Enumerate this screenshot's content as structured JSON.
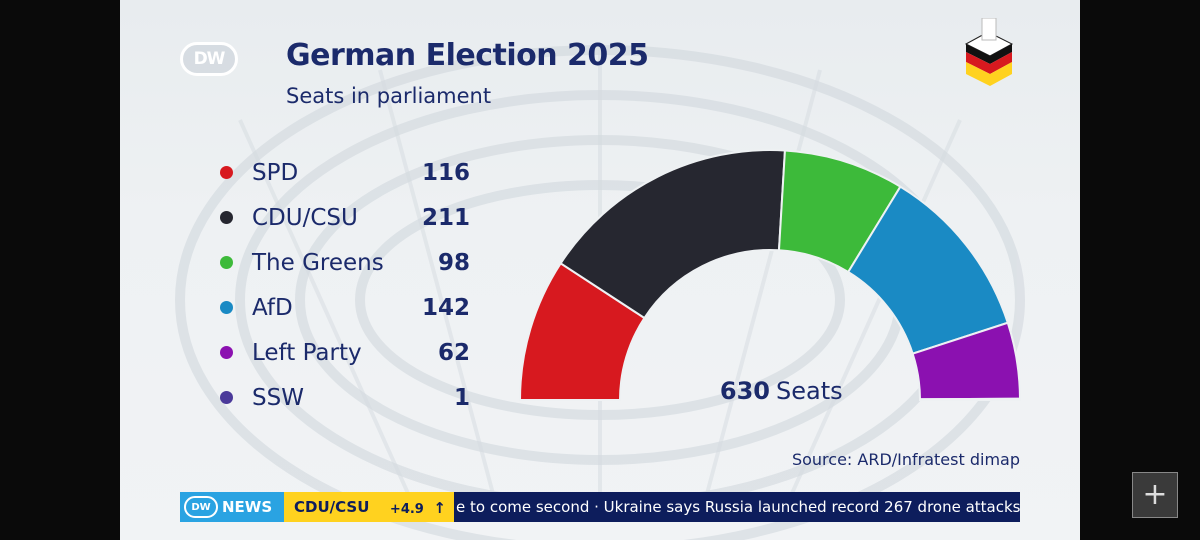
{
  "graphic": {
    "logo": "DW",
    "title": "German Election 2025",
    "subtitle": "Seats in parliament",
    "source": "Source: ARD/Infratest dimap",
    "total_value": "630",
    "total_label": "Seats"
  },
  "legend": [
    {
      "name": "SPD",
      "value": "116",
      "color": "#d7191f"
    },
    {
      "name": "CDU/CSU",
      "value": "211",
      "color": "#262730"
    },
    {
      "name": "The Greens",
      "value": "98",
      "color": "#3dba3a"
    },
    {
      "name": "AfD",
      "value": "142",
      "color": "#1a8ac4"
    },
    {
      "name": "Left Party",
      "value": "62",
      "color": "#8b11b0"
    },
    {
      "name": "SSW",
      "value": "1",
      "color": "#4b3a9a"
    }
  ],
  "chart_data": {
    "type": "pie",
    "title": "German Election 2025",
    "subtitle": "Seats in parliament",
    "categories": [
      "SPD",
      "CDU/CSU",
      "The Greens",
      "AfD",
      "Left Party",
      "SSW"
    ],
    "values": [
      116,
      211,
      98,
      142,
      62,
      1
    ],
    "colors": [
      "#d7191f",
      "#262730",
      "#3dba3a",
      "#1a8ac4",
      "#8b11b0",
      "#4b3a9a"
    ],
    "total": 630,
    "shape": "semicircle"
  },
  "ticker": {
    "brand_logo": "DW",
    "brand_label": "NEWS",
    "party": "CDU/CSU",
    "change": "+4.9",
    "arrow": "↑",
    "headline": "e to come second  ·  Ukraine says Russia launched record 267 drone attacks"
  },
  "overlay": {
    "plus_label": "+"
  }
}
